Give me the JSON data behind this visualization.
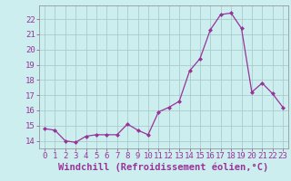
{
  "x": [
    0,
    1,
    2,
    3,
    4,
    5,
    6,
    7,
    8,
    9,
    10,
    11,
    12,
    13,
    14,
    15,
    16,
    17,
    18,
    19,
    20,
    21,
    22,
    23
  ],
  "y": [
    14.8,
    14.7,
    14.0,
    13.9,
    14.3,
    14.4,
    14.4,
    14.4,
    15.1,
    14.7,
    14.4,
    15.9,
    16.2,
    16.6,
    18.6,
    19.4,
    21.3,
    22.3,
    22.4,
    21.4,
    17.2,
    17.8,
    17.1,
    16.2
  ],
  "line_color": "#993399",
  "marker": "D",
  "marker_size": 2.0,
  "bg_color": "#cceeee",
  "grid_color": "#aacccc",
  "xlabel": "Windchill (Refroidissement éolien,°C)",
  "xlim": [
    -0.5,
    23.5
  ],
  "ylim": [
    13.5,
    22.9
  ],
  "yticks": [
    14,
    15,
    16,
    17,
    18,
    19,
    20,
    21,
    22
  ],
  "xticks": [
    0,
    1,
    2,
    3,
    4,
    5,
    6,
    7,
    8,
    9,
    10,
    11,
    12,
    13,
    14,
    15,
    16,
    17,
    18,
    19,
    20,
    21,
    22,
    23
  ],
  "tick_label_fontsize": 6.5,
  "xlabel_fontsize": 7.5,
  "linewidth": 0.9
}
